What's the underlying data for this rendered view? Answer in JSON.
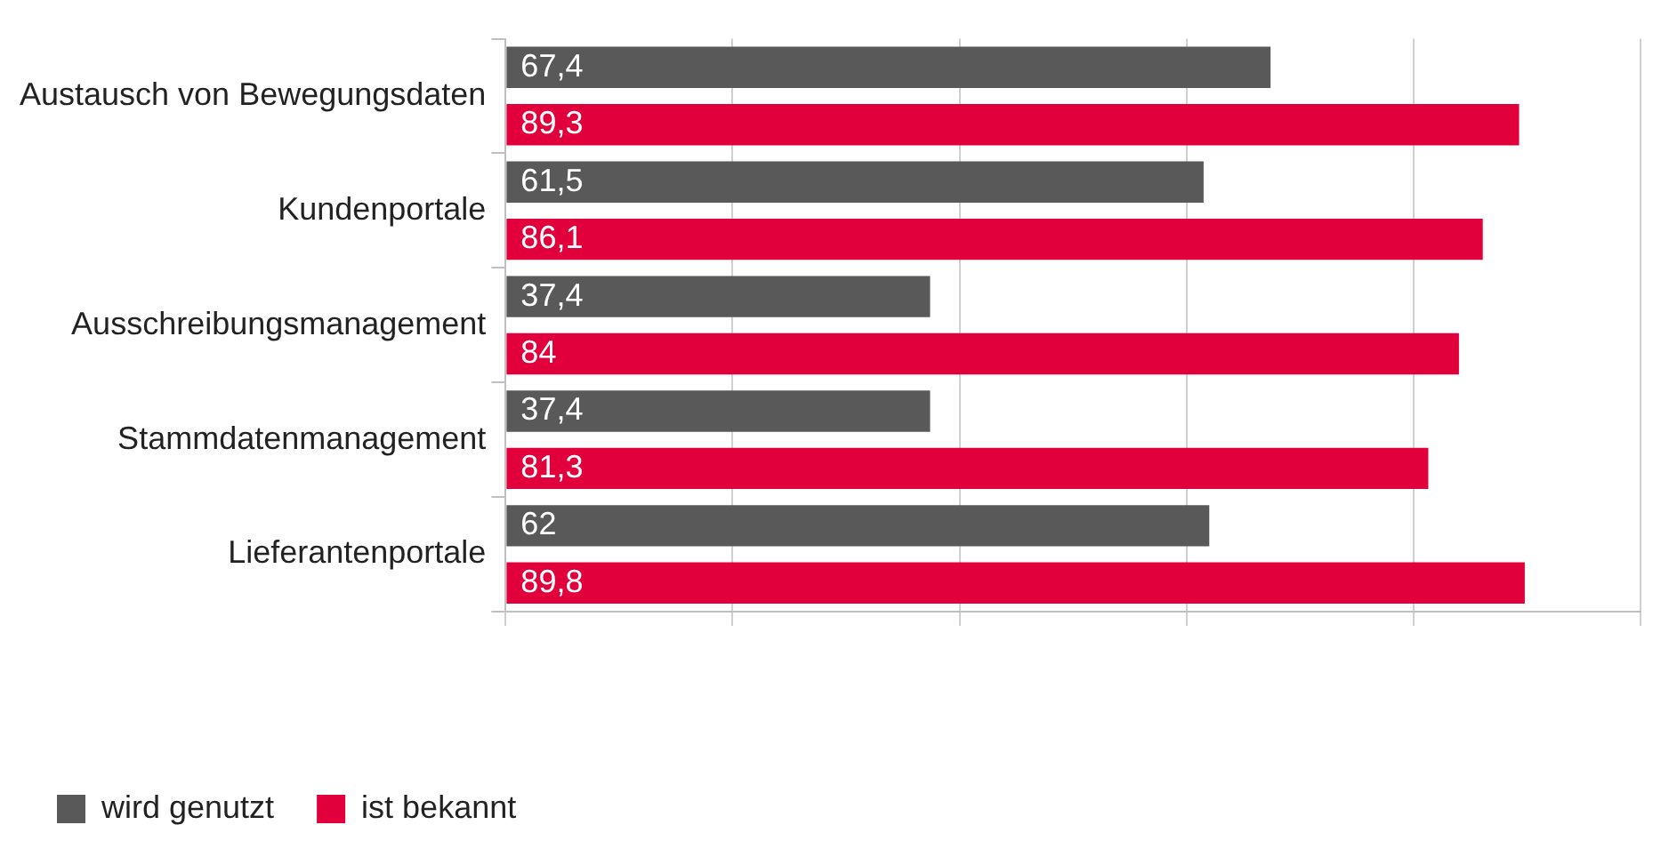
{
  "chart_data": {
    "type": "bar",
    "orientation": "horizontal",
    "categories": [
      "Austausch von Bewegungsdaten",
      "Kundenportale",
      "Ausschreibungsmanagement",
      "Stammdatenmanagement",
      "Lieferantenportale"
    ],
    "series": [
      {
        "name": "wird genutzt",
        "color": "#595959",
        "values": [
          67.4,
          61.5,
          37.4,
          37.4,
          62
        ],
        "value_labels": [
          "67,4",
          "61,5",
          "37,4",
          "37,4",
          "62"
        ]
      },
      {
        "name": "ist bekannt",
        "color": "#e2003c",
        "values": [
          89.3,
          86.1,
          84,
          81.3,
          89.8
        ],
        "value_labels": [
          "89,3",
          "86,1",
          "84",
          "81,3",
          "89,8"
        ]
      }
    ],
    "xlim": [
      0,
      100
    ],
    "xticks": [
      {
        "value": 0,
        "label": null
      },
      {
        "value": 20,
        "label": null
      },
      {
        "value": 40,
        "label": null
      },
      {
        "value": 60,
        "label": null
      },
      {
        "value": 80,
        "label": null
      },
      {
        "value": 100,
        "label": null
      }
    ],
    "grid": "x",
    "legend": "bottom left"
  }
}
